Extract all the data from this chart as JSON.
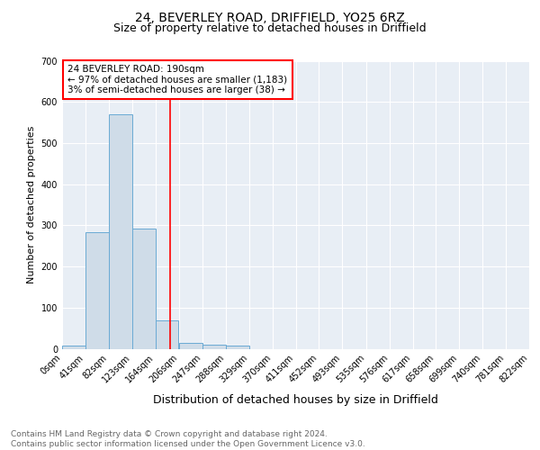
{
  "title1": "24, BEVERLEY ROAD, DRIFFIELD, YO25 6RZ",
  "title2": "Size of property relative to detached houses in Driffield",
  "xlabel": "Distribution of detached houses by size in Driffield",
  "ylabel": "Number of detached properties",
  "bin_edges": [
    0,
    41,
    82,
    123,
    164,
    206,
    247,
    288,
    329,
    370,
    411,
    452,
    493,
    535,
    576,
    617,
    658,
    699,
    740,
    781,
    822
  ],
  "bar_heights": [
    8,
    283,
    570,
    293,
    68,
    14,
    10,
    8,
    0,
    0,
    0,
    0,
    0,
    0,
    0,
    0,
    0,
    0,
    0,
    0
  ],
  "bar_color": "#cfdce8",
  "bar_edgecolor": "#6aaad4",
  "red_line_x": 190,
  "annotation_line1": "24 BEVERLEY ROAD: 190sqm",
  "annotation_line2": "← 97% of detached houses are smaller (1,183)",
  "annotation_line3": "3% of semi-detached houses are larger (38) →",
  "background_color": "#e8eef5",
  "grid_color": "#ffffff",
  "ylim": [
    0,
    700
  ],
  "yticks": [
    0,
    100,
    200,
    300,
    400,
    500,
    600,
    700
  ],
  "tick_labels": [
    "0sqm",
    "41sqm",
    "82sqm",
    "123sqm",
    "164sqm",
    "206sqm",
    "247sqm",
    "288sqm",
    "329sqm",
    "370sqm",
    "411sqm",
    "452sqm",
    "493sqm",
    "535sqm",
    "576sqm",
    "617sqm",
    "658sqm",
    "699sqm",
    "740sqm",
    "781sqm",
    "822sqm"
  ],
  "footer_text": "Contains HM Land Registry data © Crown copyright and database right 2024.\nContains public sector information licensed under the Open Government Licence v3.0.",
  "title1_fontsize": 10,
  "title2_fontsize": 9,
  "xlabel_fontsize": 9,
  "ylabel_fontsize": 8,
  "tick_fontsize": 7,
  "footer_fontsize": 6.5,
  "annot_fontsize": 7.5
}
